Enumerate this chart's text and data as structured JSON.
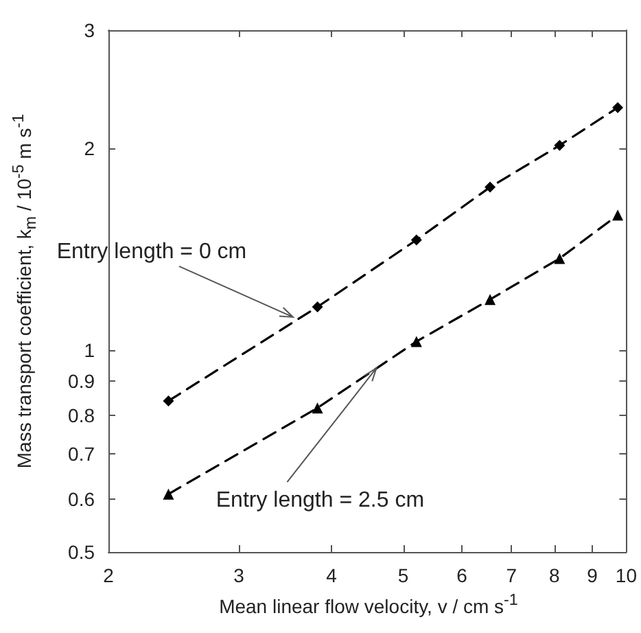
{
  "chart_data": {
    "type": "line",
    "xlabel": "Mean linear flow velocity, v / cm s$^{-1}$",
    "ylabel": "Mass transport coefficient, k$_{m}$ / 10$^{-5}$ m s$^{-1}$",
    "x": [
      2.41,
      3.83,
      5.21,
      6.55,
      8.13,
      9.74
    ],
    "series": [
      {
        "color": "#000000",
        "marker": "diamond",
        "values": [
          0.84,
          1.16,
          1.46,
          1.75,
          2.02,
          2.3
        ]
      },
      {
        "color": "#000000",
        "marker": "triangle",
        "values": [
          0.61,
          0.82,
          1.03,
          1.19,
          1.37,
          1.59
        ]
      }
    ],
    "annotations": [
      {
        "text": "Entry length = 0 cm",
        "x": 3.55,
        "y": 1.12
      },
      {
        "text": "Entry length = 2.5 cm",
        "x": 4.6,
        "y": 0.94
      }
    ],
    "xlim": [
      2,
      10
    ],
    "xticks": [
      2,
      3,
      4,
      5,
      6,
      7,
      8,
      9,
      10
    ],
    "ylim": [
      0.5,
      3
    ],
    "yticks": [
      0.5,
      0.6,
      0.7,
      0.8,
      0.9,
      1,
      2,
      3
    ],
    "log": "xy",
    "line_style": "dashed",
    "grid": false
  }
}
